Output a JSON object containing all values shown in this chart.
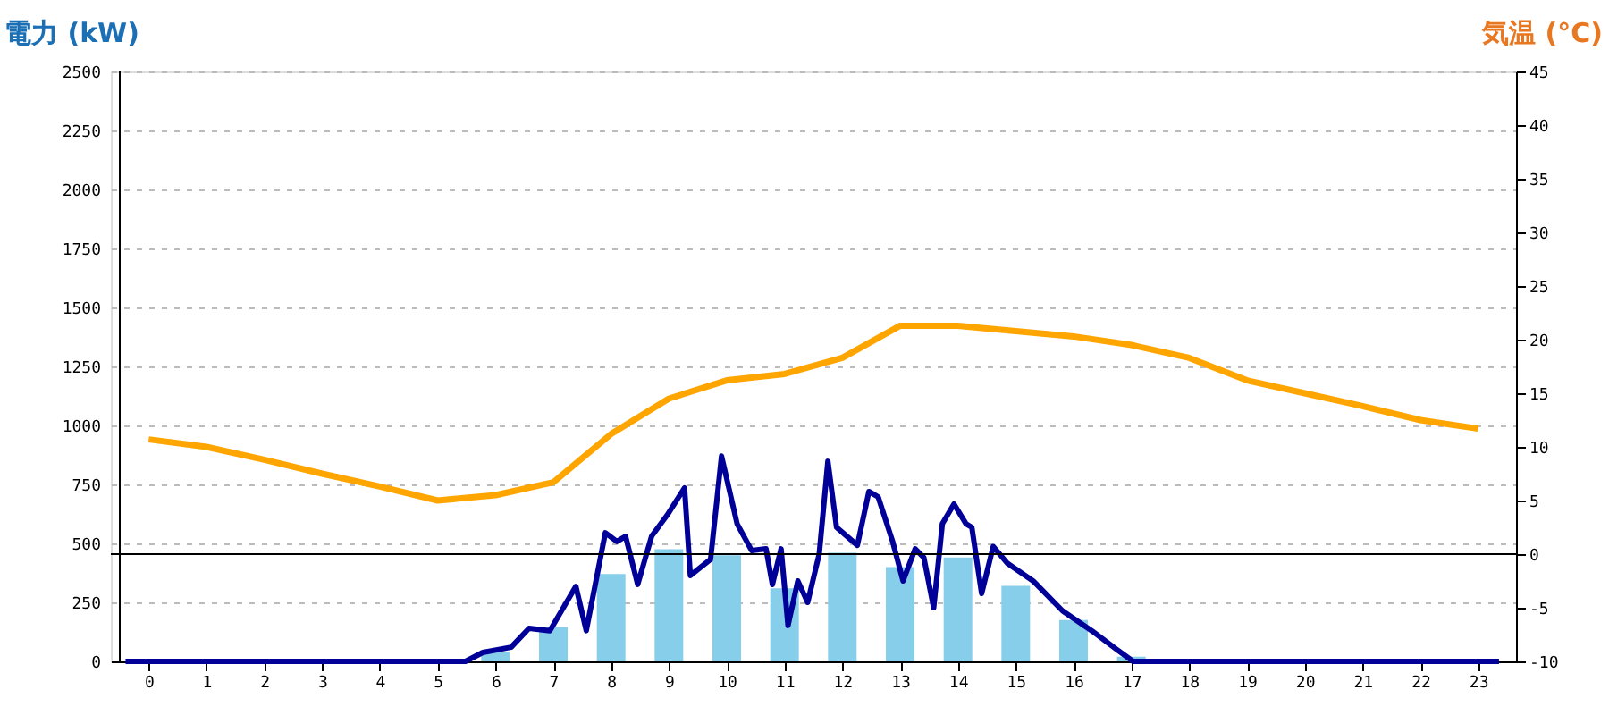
{
  "chart_data": {
    "type": "bar",
    "ylabel": "電力 (kW)",
    "y2label": "気温 (°C)",
    "xlim": [
      -0.5,
      23.5
    ],
    "xticks": [
      0,
      1,
      2,
      3,
      4,
      5,
      6,
      7,
      8,
      9,
      10,
      11,
      12,
      13,
      14,
      15,
      16,
      17,
      18,
      19,
      20,
      21,
      22,
      23
    ],
    "ylim": [
      0,
      2500
    ],
    "yticks": [
      0,
      250,
      500,
      750,
      1000,
      1250,
      1500,
      1750,
      2000,
      2250,
      2500
    ],
    "y2lim": [
      -10,
      45
    ],
    "y2ticks": [
      -10,
      -5,
      0,
      5,
      10,
      15,
      20,
      25,
      30,
      35,
      40,
      45
    ],
    "grid": "y",
    "ref_lines": [
      {
        "axis": "y2",
        "value": 0,
        "color": "#000000"
      }
    ],
    "series": [
      {
        "type": "bar",
        "color": "#87ceeb",
        "x": [
          0,
          1,
          2,
          3,
          4,
          5,
          6,
          7,
          8,
          9,
          10,
          11,
          12,
          13,
          14,
          15,
          16,
          17,
          18,
          19,
          20,
          21,
          22,
          23
        ],
        "values": [
          0,
          0,
          0,
          0,
          0,
          0,
          40,
          145,
          370,
          475,
          450,
          310,
          460,
          400,
          440,
          320,
          175,
          20,
          0,
          0,
          0,
          0,
          0,
          0
        ]
      },
      {
        "type": "line",
        "color": "#000099",
        "x": [
          -0.4,
          5.48,
          5.78,
          6.27,
          6.58,
          6.94,
          7.39,
          7.57,
          7.9,
          8.1,
          8.25,
          8.46,
          8.7,
          8.97,
          9.27,
          9.37,
          9.72,
          9.91,
          10.18,
          10.43,
          10.68,
          10.79,
          10.94,
          11.06,
          11.23,
          11.4,
          11.6,
          11.75,
          11.9,
          12.26,
          12.46,
          12.62,
          12.87,
          13.05,
          13.26,
          13.41,
          13.58,
          13.73,
          13.93,
          14.14,
          14.24,
          14.41,
          14.61,
          14.85,
          15.3,
          15.81,
          16.32,
          16.72,
          17.03,
          23.36
        ],
        "values": [
          0,
          0,
          38,
          60,
          140,
          130,
          318,
          130,
          545,
          508,
          530,
          326,
          530,
          620,
          735,
          364,
          432,
          870,
          583,
          470,
          477,
          326,
          477,
          152,
          341,
          250,
          455,
          848,
          568,
          492,
          720,
          697,
          508,
          341,
          477,
          440,
          227,
          583,
          667,
          583,
          568,
          288,
          487,
          417,
          341,
          214,
          129,
          55,
          0,
          0
        ]
      },
      {
        "type": "line",
        "axis": "y2",
        "color": "#ffa500",
        "x": [
          0,
          1,
          2,
          3,
          4,
          5,
          6,
          7,
          8,
          9,
          10,
          11,
          12,
          13,
          14,
          15,
          16,
          17,
          18,
          19,
          20,
          21,
          22,
          23
        ],
        "values": [
          10.7,
          10,
          8.8,
          7.5,
          6.3,
          5,
          5.5,
          6.7,
          11.2,
          14.5,
          16.2,
          16.8,
          18.3,
          21.3,
          21.3,
          20.8,
          20.3,
          19.5,
          18.3,
          16.2,
          15,
          13.8,
          12.5,
          11.7
        ]
      }
    ]
  }
}
